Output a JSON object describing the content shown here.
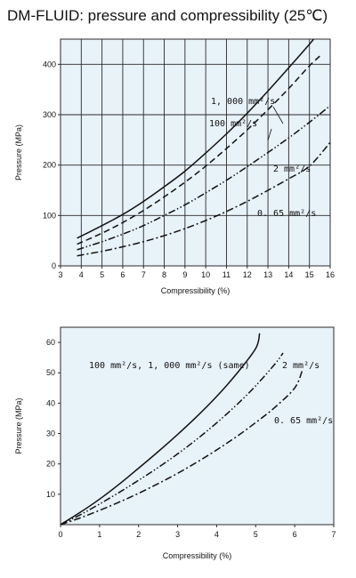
{
  "title": "DM-FLUID: pressure and compressibility (25℃)",
  "chart_data": [
    {
      "type": "line",
      "xlabel": "Compressibility (%)",
      "ylabel": "Pressure (MPa)",
      "xlim": [
        3,
        16
      ],
      "ylim": [
        0,
        450
      ],
      "xticks": [
        3,
        4,
        5,
        6,
        7,
        8,
        9,
        10,
        11,
        12,
        13,
        14,
        15,
        16
      ],
      "yticks": [
        0,
        100,
        200,
        300,
        400
      ],
      "grid": true,
      "series": [
        {
          "name": "1, 000 mm²/s",
          "style": "solid",
          "x": [
            3.8,
            5,
            6,
            7,
            8,
            9,
            10,
            11,
            12,
            13,
            14,
            15,
            15.2
          ],
          "y": [
            55,
            80,
            102,
            128,
            157,
            188,
            224,
            262,
            303,
            347,
            393,
            440,
            450
          ]
        },
        {
          "name": "100 mm²/s",
          "style": "dashed",
          "x": [
            3.8,
            5,
            6,
            7,
            8,
            9,
            10,
            11,
            12,
            13,
            14,
            15,
            15.6
          ],
          "y": [
            43,
            65,
            86,
            110,
            137,
            166,
            198,
            233,
            270,
            310,
            352,
            397,
            420
          ]
        },
        {
          "name": "2 mm²/s",
          "style": "dash-dot-dot",
          "x": [
            3.8,
            5,
            6,
            7,
            8,
            9,
            10,
            11,
            12,
            13,
            14,
            15,
            16
          ],
          "y": [
            32,
            48,
            63,
            80,
            100,
            121,
            145,
            170,
            197,
            225,
            254,
            285,
            318
          ]
        },
        {
          "name": "0. 65 mm²/s",
          "style": "dash-dot",
          "x": [
            3.8,
            5,
            6,
            7,
            8,
            9,
            10,
            11,
            12,
            13,
            14,
            15,
            16
          ],
          "y": [
            20,
            29,
            38,
            48,
            60,
            74,
            90,
            108,
            128,
            150,
            173,
            198,
            245
          ]
        }
      ]
    },
    {
      "type": "line",
      "xlabel": "Compressibility (%)",
      "ylabel": "Pressure (MPa)",
      "xlim": [
        0,
        7
      ],
      "ylim": [
        0,
        65
      ],
      "xticks": [
        0,
        1,
        2,
        3,
        4,
        5,
        6,
        7
      ],
      "yticks": [
        10,
        20,
        30,
        40,
        50,
        60
      ],
      "grid": false,
      "series": [
        {
          "name": "100 mm²/s, 1, 000 mm²/s (same)",
          "style": "solid",
          "x": [
            0,
            0.5,
            1,
            1.5,
            2,
            2.5,
            3,
            3.5,
            4,
            4.5,
            5,
            5.1
          ],
          "y": [
            0,
            4,
            8.4,
            13.3,
            18.6,
            24,
            29.7,
            35.7,
            42.2,
            49.5,
            58,
            63
          ]
        },
        {
          "name": "2 mm²/s",
          "style": "dash-dot-dot",
          "x": [
            0,
            0.5,
            1,
            1.5,
            2,
            2.5,
            3,
            3.5,
            4,
            4.5,
            5,
            5.5,
            5.7
          ],
          "y": [
            0,
            3.2,
            6.8,
            10.6,
            14.6,
            18.8,
            23.3,
            28.2,
            33.5,
            39.3,
            45.7,
            53,
            56.5
          ]
        },
        {
          "name": "0. 65 mm²/s",
          "style": "dash-dot",
          "x": [
            0,
            0.5,
            1,
            1.5,
            2,
            2.5,
            3,
            3.5,
            4,
            4.5,
            5,
            5.5,
            6,
            6.2
          ],
          "y": [
            0,
            2.2,
            4.7,
            7.4,
            10.3,
            13.5,
            16.9,
            20.6,
            24.6,
            28.9,
            33.6,
            38.7,
            45,
            51
          ]
        }
      ]
    }
  ]
}
